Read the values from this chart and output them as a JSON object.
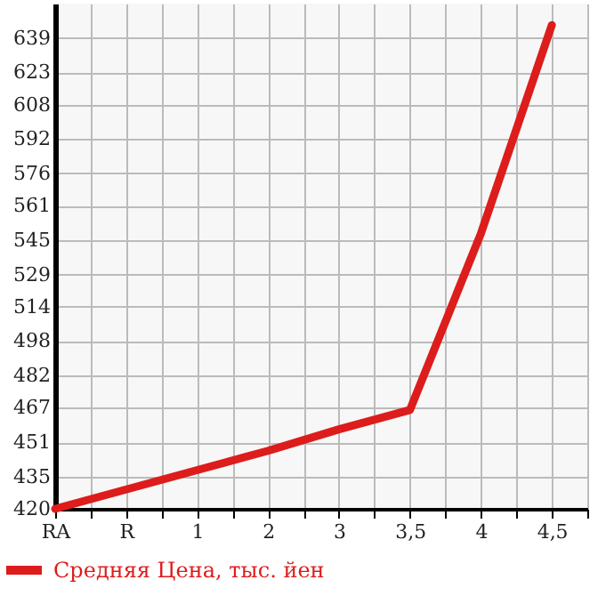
{
  "chart_data": {
    "type": "line",
    "categories": [
      "RA",
      "R",
      "1",
      "2",
      "3",
      "3,5",
      "4",
      "4,5"
    ],
    "series": [
      {
        "name": "Средняя Цена, тыс. йен",
        "color": "#dd1c1c",
        "values": [
          420,
          429,
          438,
          447,
          457,
          466,
          548,
          645
        ]
      }
    ],
    "ylim": [
      420,
      655
    ],
    "yticks": [
      420,
      435,
      451,
      467,
      482,
      498,
      514,
      529,
      545,
      561,
      576,
      592,
      608,
      623,
      639
    ],
    "grid": true,
    "legend": "bottom left",
    "marker": "none",
    "line_style": "solid"
  }
}
